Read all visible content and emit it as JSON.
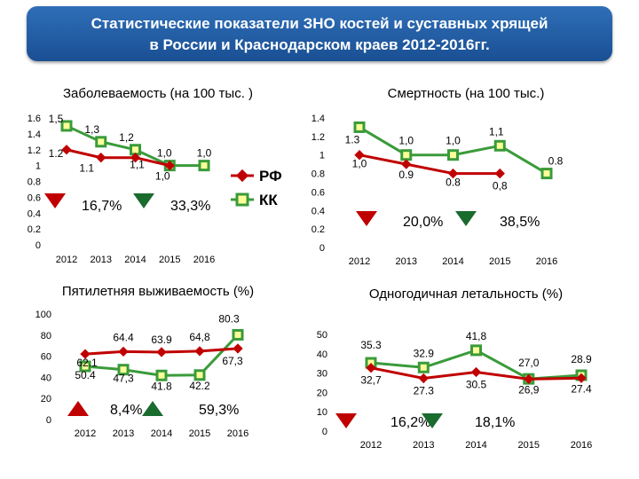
{
  "header": {
    "title_line1": "Статистические показатели ЗНО костей и суставных хрящей",
    "title_line2": "в России и  Краснодарском краев 2012-2016гг."
  },
  "legend": {
    "rf_label": "РФ",
    "kk_label": "КК",
    "rf_color": "#c00000",
    "kk_color": "#00b050"
  },
  "chart_data": [
    {
      "id": "incidence",
      "type": "line",
      "title": "Заболеваемость (на 100 тыс. )",
      "x": [
        "2012",
        "2013",
        "2014",
        "2015",
        "2016"
      ],
      "ylim": [
        0,
        1.6
      ],
      "yticks": [
        "0",
        "0.2",
        "0.4",
        "0.6",
        "0.8",
        "1",
        "1.2",
        "1.4",
        "1.6"
      ],
      "series": [
        {
          "name": "КК",
          "values": [
            1.5,
            1.3,
            1.2,
            1.0,
            1.0
          ],
          "labels": [
            "1,5",
            "1,3",
            "1,2",
            "1,0",
            "1,0"
          ]
        },
        {
          "name": "РФ",
          "values": [
            1.2,
            1.1,
            1.1,
            1.0,
            null
          ],
          "labels": [
            "1.2",
            "1.1",
            "1,1",
            "1,0",
            ""
          ]
        }
      ],
      "annotations": [
        {
          "dir": "down",
          "color": "#c00000",
          "text": "16,7%"
        },
        {
          "dir": "down",
          "color": "#1a6b2e",
          "text": "33,3%"
        }
      ]
    },
    {
      "id": "mortality",
      "type": "line",
      "title": "Смертность (на 100 тыс.)",
      "x": [
        "2012",
        "2013",
        "2014",
        "2015",
        "2016"
      ],
      "ylim": [
        0,
        1.4
      ],
      "yticks": [
        "0",
        "0.2",
        "0.4",
        "0.6",
        "0.8",
        "1",
        "1.2",
        "1.4"
      ],
      "series": [
        {
          "name": "КК",
          "values": [
            1.3,
            1.0,
            1.0,
            1.1,
            0.8
          ],
          "labels": [
            "1.3",
            "1,0",
            "1,0",
            "1,1",
            "0.8"
          ]
        },
        {
          "name": "РФ",
          "values": [
            1.0,
            0.9,
            0.8,
            0.8,
            null
          ],
          "labels": [
            "1,0",
            "0.9",
            "0.8",
            "0,8",
            ""
          ]
        }
      ],
      "annotations": [
        {
          "dir": "down",
          "color": "#c00000",
          "text": "20,0%"
        },
        {
          "dir": "down",
          "color": "#1a6b2e",
          "text": "38,5%"
        }
      ]
    },
    {
      "id": "survival",
      "type": "line",
      "title": "Пятилетняя выживаемость (%)",
      "x": [
        "2012",
        "2013",
        "2014",
        "2015",
        "2016"
      ],
      "ylim": [
        0,
        100
      ],
      "yticks": [
        "0",
        "20",
        "40",
        "60",
        "80",
        "100"
      ],
      "series": [
        {
          "name": "КК",
          "values": [
            50.4,
            47.3,
            41.8,
            42.2,
            80.3
          ],
          "labels": [
            "50.4",
            "47,3",
            "41.8",
            "42.2",
            "80.3"
          ]
        },
        {
          "name": "РФ",
          "values": [
            62.1,
            64.4,
            63.9,
            64.8,
            67.3
          ],
          "labels": [
            "62.1",
            "64.4",
            "63.9",
            "64,8",
            "67,3"
          ]
        }
      ],
      "annotations": [
        {
          "dir": "up",
          "color": "#c00000",
          "text": "8,4%"
        },
        {
          "dir": "up",
          "color": "#1a6b2e",
          "text": "59,3%"
        }
      ]
    },
    {
      "id": "lethality",
      "type": "line",
      "title": "Одногодичная летальность (%)",
      "x": [
        "2012",
        "2013",
        "2014",
        "2015",
        "2016"
      ],
      "ylim": [
        0,
        50
      ],
      "yticks": [
        "0",
        "10",
        "20",
        "30",
        "40",
        "50"
      ],
      "series": [
        {
          "name": "КК",
          "values": [
            35.3,
            32.9,
            41.8,
            27.0,
            28.9
          ],
          "labels": [
            "35.3",
            "32.9",
            "41,8",
            "27,0",
            "28.9"
          ]
        },
        {
          "name": "РФ",
          "values": [
            32.7,
            27.3,
            30.5,
            26.9,
            27.4
          ],
          "labels": [
            "32,7",
            "27.3",
            "30.5",
            "26,9",
            "27.4"
          ]
        }
      ],
      "annotations": [
        {
          "dir": "down",
          "color": "#c00000",
          "text": "16,2%"
        },
        {
          "dir": "down",
          "color": "#1a6b2e",
          "text": "18,1%"
        }
      ]
    }
  ]
}
